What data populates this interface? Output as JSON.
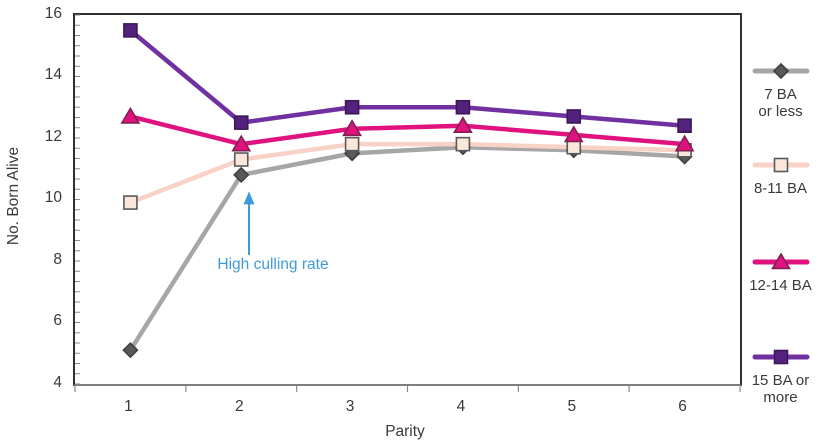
{
  "chart_data": {
    "type": "line",
    "title": "",
    "xlabel": "Parity",
    "ylabel": "No. Born Alive",
    "x": [
      "1",
      "2",
      "3",
      "4",
      "5",
      "6"
    ],
    "ylim": [
      4,
      16
    ],
    "y_major_ticks": [
      16,
      14,
      12,
      10,
      8,
      6,
      4
    ],
    "grid": false,
    "legend_position": "right",
    "series": [
      {
        "name": "7 BA or less",
        "label_lines": [
          "7 BA",
          "or less"
        ],
        "marker": "diamond",
        "line_color": "#a6a6a6",
        "marker_fill": "#595959",
        "marker_stroke": "#3f3f3f",
        "values": [
          5.1,
          10.8,
          11.5,
          11.7,
          11.6,
          11.4
        ]
      },
      {
        "name": "8-11 BA",
        "label_lines": [
          "8-11 BA"
        ],
        "marker": "square",
        "line_color": "#f8d2c6",
        "marker_fill": "#fbe7da",
        "marker_stroke": "#595959",
        "values": [
          9.9,
          11.3,
          11.8,
          11.8,
          11.7,
          11.6
        ]
      },
      {
        "name": "12-14 BA",
        "label_lines": [
          "12-14 BA"
        ],
        "marker": "triangle",
        "line_color": "#e0127f",
        "marker_fill": "#e0127f",
        "marker_stroke": "#7e2150",
        "values": [
          12.7,
          11.8,
          12.3,
          12.4,
          12.1,
          11.8
        ]
      },
      {
        "name": "15 BA or more",
        "label_lines": [
          "15 BA or",
          "more"
        ],
        "marker": "square",
        "line_color": "#7030a0",
        "marker_fill": "#54217e",
        "marker_stroke": "#3b1a57",
        "values": [
          15.5,
          12.5,
          13.0,
          13.0,
          12.7,
          12.4
        ]
      }
    ],
    "annotation": {
      "text": "High culling rate",
      "color": "#3f9ad9",
      "arrow_x_category": 2.07,
      "arrow_y_from": 8.2,
      "arrow_y_to": 10.2
    }
  }
}
